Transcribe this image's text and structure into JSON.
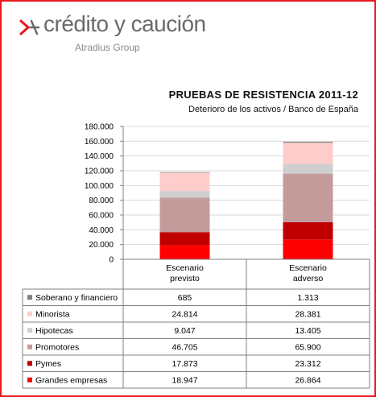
{
  "brand": {
    "name": "crédito y caución",
    "subname": "Atradius Group",
    "accent": "#e8191f",
    "text_color": "#6b6b6b"
  },
  "chart_data": {
    "type": "bar",
    "stacked": true,
    "title": "PRUEBAS DE RESISTENCIA 2011-12",
    "subtitle": "Deterioro de los activos / Banco de España",
    "categories": [
      "Escenario previsto",
      "Escenario adverso"
    ],
    "category_lines": [
      [
        "Escenario",
        "previsto"
      ],
      [
        "Escenario",
        "adverso"
      ]
    ],
    "ylim": [
      0,
      180000
    ],
    "yticks": [
      0,
      20000,
      40000,
      60000,
      80000,
      100000,
      120000,
      140000,
      160000,
      180000
    ],
    "ytick_labels": [
      "0",
      "20.000",
      "40.000",
      "60.000",
      "80.000",
      "100.000",
      "120.000",
      "140.000",
      "160.000",
      "180.000"
    ],
    "grid": true,
    "legend": "table-below",
    "series": [
      {
        "name": "Grandes empresas",
        "values": [
          18947,
          26864
        ],
        "labels": [
          "18.947",
          "26.864"
        ],
        "color": "#ff0000"
      },
      {
        "name": "Pymes",
        "values": [
          17873,
          23312
        ],
        "labels": [
          "17.873",
          "23.312"
        ],
        "color": "#c00000"
      },
      {
        "name": "Promotores",
        "values": [
          46705,
          65900
        ],
        "labels": [
          "46.705",
          "65.900"
        ],
        "color": "#c49b9b"
      },
      {
        "name": "Hipotecas",
        "values": [
          9047,
          13405
        ],
        "labels": [
          "9.047",
          "13.405"
        ],
        "color": "#cfcfcf"
      },
      {
        "name": "Minorista",
        "values": [
          24814,
          28381
        ],
        "labels": [
          "24.814",
          "28.381"
        ],
        "color": "#ffcccc"
      },
      {
        "name": "Soberano y financiero",
        "values": [
          685,
          1313
        ],
        "labels": [
          "685",
          "1.313"
        ],
        "color": "#808080"
      }
    ]
  }
}
